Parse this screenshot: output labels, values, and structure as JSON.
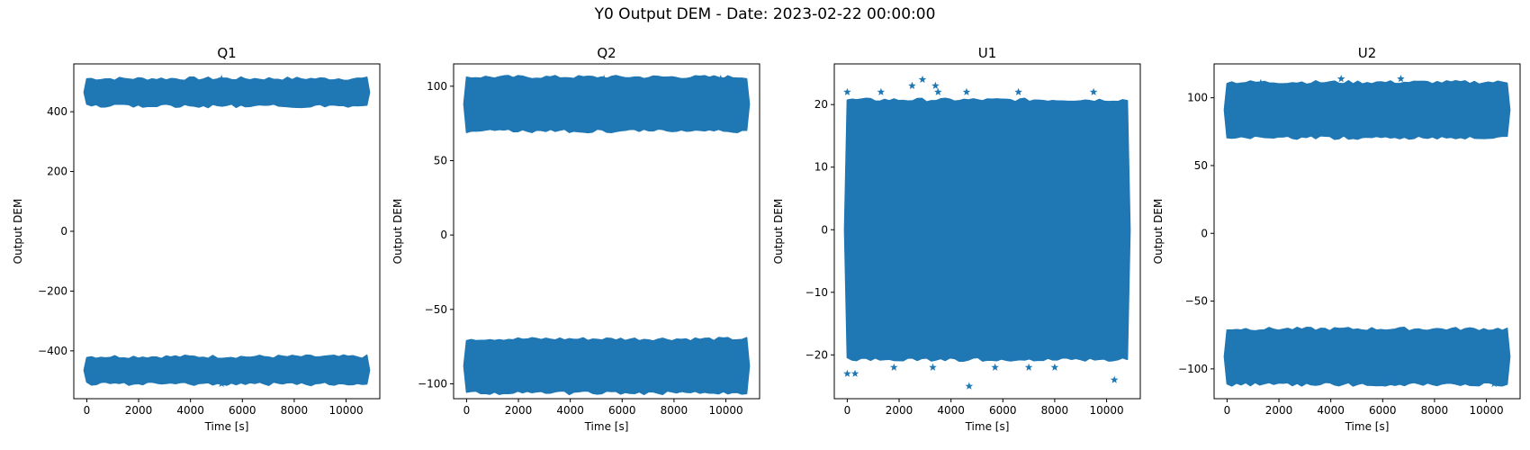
{
  "figure": {
    "title": "Y0 Output DEM - Date: 2023-02-22 00:00:00",
    "marker_color": "#1f77b4"
  },
  "chart_data": [
    {
      "type": "scatter",
      "title": "Q1",
      "xlabel": "Time [s]",
      "ylabel": "Output DEM",
      "marker": "star",
      "xlim": [
        -500,
        11300
      ],
      "ylim": [
        -560,
        560
      ],
      "x_ticks": [
        0,
        2000,
        4000,
        6000,
        8000,
        10000
      ],
      "x_tick_labels": [
        "0",
        "2000",
        "4000",
        "6000",
        "8000",
        "10000"
      ],
      "y_ticks": [
        -400,
        -200,
        0,
        200,
        400
      ],
      "y_tick_labels": [
        "−400",
        "−200",
        "0",
        "200",
        "400"
      ],
      "x_range": [
        0,
        10800
      ],
      "bands": [
        {
          "center": 465,
          "halfwidth": 30
        },
        {
          "center": -465,
          "halfwidth": 30
        }
      ],
      "outliers": [
        {
          "x": 5200,
          "y": 510
        },
        {
          "x": 5200,
          "y": -510
        }
      ]
    },
    {
      "type": "scatter",
      "title": "Q2",
      "xlabel": "Time [s]",
      "ylabel": "Output DEM",
      "marker": "star",
      "xlim": [
        -500,
        11300
      ],
      "ylim": [
        -110,
        115
      ],
      "x_ticks": [
        0,
        2000,
        4000,
        6000,
        8000,
        10000
      ],
      "x_tick_labels": [
        "0",
        "2000",
        "4000",
        "6000",
        "8000",
        "10000"
      ],
      "y_ticks": [
        -100,
        -50,
        0,
        50,
        100
      ],
      "y_tick_labels": [
        "−100",
        "−50",
        "0",
        "50",
        "100"
      ],
      "x_range": [
        0,
        10800
      ],
      "bands": [
        {
          "center": 88,
          "halfwidth": 15
        },
        {
          "center": -88,
          "halfwidth": 15
        }
      ],
      "outliers": [
        {
          "x": 2000,
          "y": 105
        },
        {
          "x": 5300,
          "y": 105
        },
        {
          "x": 9800,
          "y": 105
        },
        {
          "x": 8200,
          "y": -104
        }
      ]
    },
    {
      "type": "scatter",
      "title": "U1",
      "xlabel": "Time [s]",
      "ylabel": "Output DEM",
      "marker": "star",
      "xlim": [
        -500,
        11300
      ],
      "ylim": [
        -27,
        26.5
      ],
      "x_ticks": [
        0,
        2000,
        4000,
        6000,
        8000,
        10000
      ],
      "x_tick_labels": [
        "0",
        "2000",
        "4000",
        "6000",
        "8000",
        "10000"
      ],
      "y_ticks": [
        -20,
        -10,
        0,
        10,
        20
      ],
      "y_tick_labels": [
        "−20",
        "−10",
        "0",
        "10",
        "20"
      ],
      "x_range": [
        0,
        10800
      ],
      "bands": [
        {
          "center": 0,
          "halfwidth": 20
        }
      ],
      "outliers": [
        {
          "x": 0,
          "y": 22
        },
        {
          "x": 2900,
          "y": 24
        },
        {
          "x": 2500,
          "y": 23
        },
        {
          "x": 3400,
          "y": 23
        },
        {
          "x": 3500,
          "y": 22
        },
        {
          "x": 1300,
          "y": 22
        },
        {
          "x": 4600,
          "y": 22
        },
        {
          "x": 6600,
          "y": 22
        },
        {
          "x": 9500,
          "y": 22
        },
        {
          "x": 0,
          "y": -23
        },
        {
          "x": 300,
          "y": -23
        },
        {
          "x": 1800,
          "y": -22
        },
        {
          "x": 3300,
          "y": -22
        },
        {
          "x": 4700,
          "y": -25
        },
        {
          "x": 5700,
          "y": -22
        },
        {
          "x": 7000,
          "y": -22
        },
        {
          "x": 8000,
          "y": -22
        },
        {
          "x": 10300,
          "y": -24
        }
      ]
    },
    {
      "type": "scatter",
      "title": "U2",
      "xlabel": "Time [s]",
      "ylabel": "Output DEM",
      "marker": "star",
      "xlim": [
        -500,
        11300
      ],
      "ylim": [
        -122,
        125
      ],
      "x_ticks": [
        0,
        2000,
        4000,
        6000,
        8000,
        10000
      ],
      "x_tick_labels": [
        "0",
        "2000",
        "4000",
        "6000",
        "8000",
        "10000"
      ],
      "y_ticks": [
        -100,
        -50,
        0,
        50,
        100
      ],
      "y_tick_labels": [
        "−100",
        "−50",
        "0",
        "50",
        "100"
      ],
      "x_range": [
        0,
        10800
      ],
      "bands": [
        {
          "center": 91,
          "halfwidth": 17
        },
        {
          "center": -91,
          "halfwidth": 17
        }
      ],
      "outliers": [
        {
          "x": 4400,
          "y": 114
        },
        {
          "x": 6700,
          "y": 114
        },
        {
          "x": 1300,
          "y": 111
        },
        {
          "x": 10300,
          "y": -111
        },
        {
          "x": 6100,
          "y": -107
        }
      ]
    }
  ]
}
